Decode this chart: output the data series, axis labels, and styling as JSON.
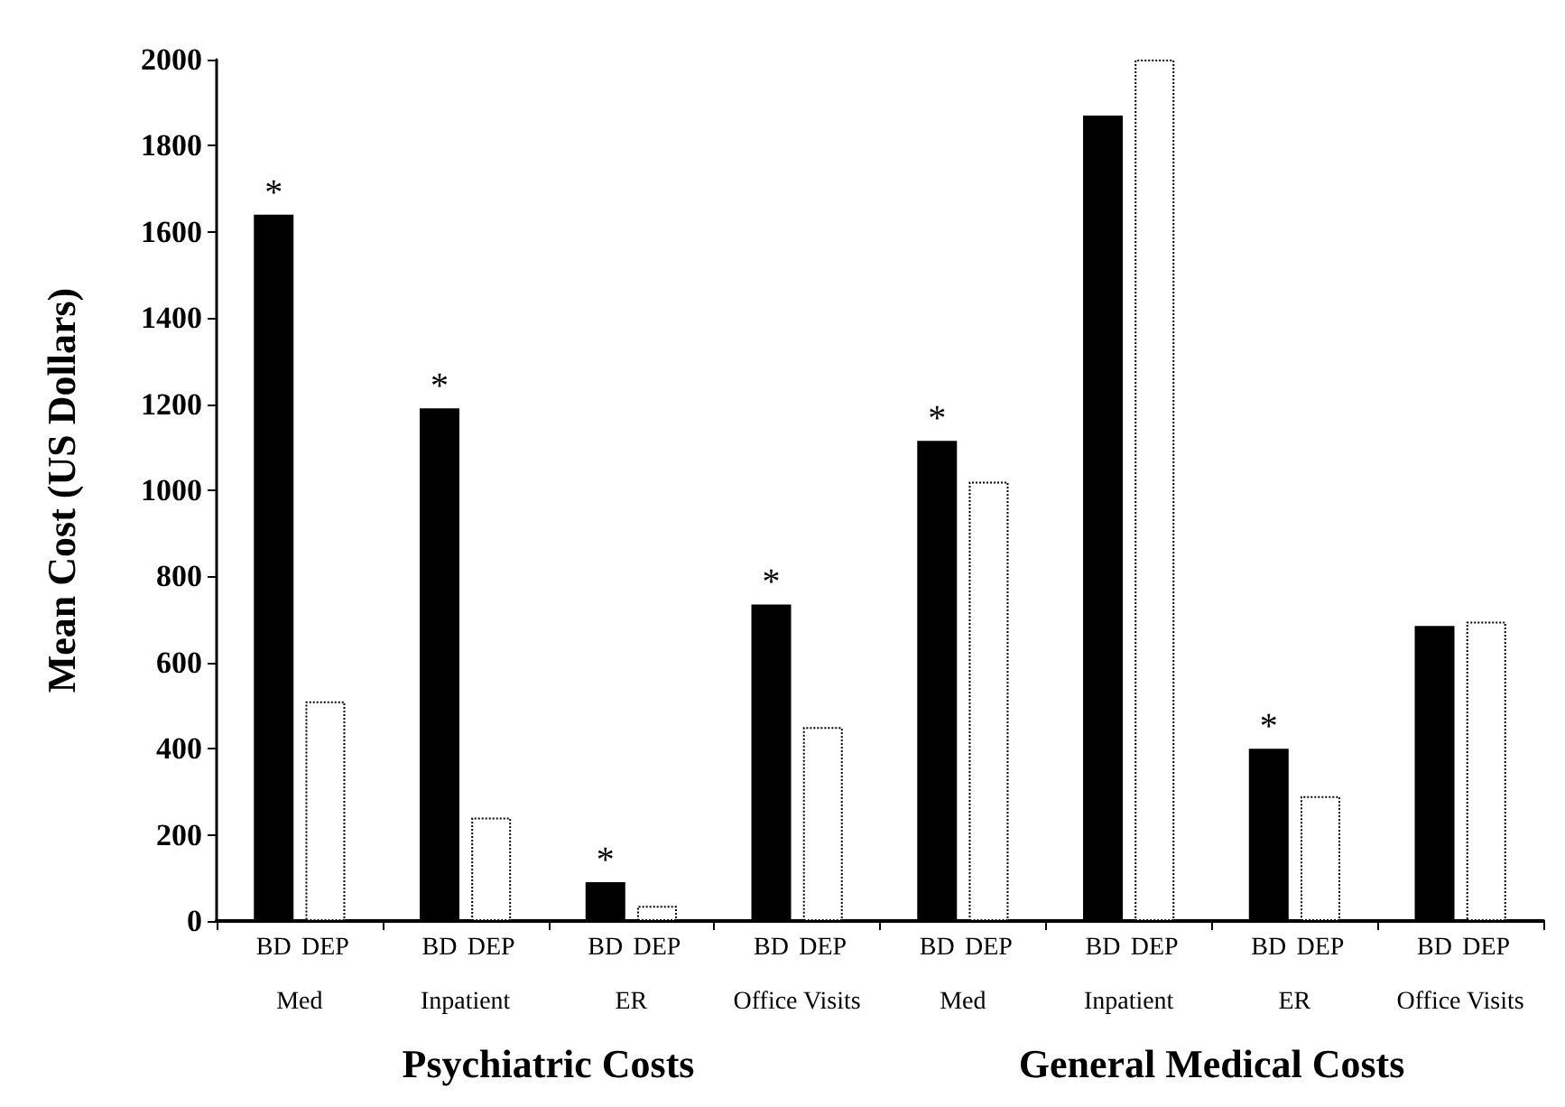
{
  "chart_data": {
    "type": "bar",
    "ylabel": "Mean Cost (US Dollars)",
    "categories": [
      "Med",
      "Inpatient",
      "ER",
      "Office Visits",
      "Med",
      "Inpatient",
      "ER",
      "Office Visits"
    ],
    "series": [
      {
        "name": "BD",
        "color": "#000000",
        "values": [
          1640,
          1190,
          90,
          735,
          1115,
          1870,
          400,
          685
        ],
        "value_labels": [
          "*",
          "*",
          "*",
          "*",
          "*",
          null,
          "*",
          null
        ]
      },
      {
        "name": "DEP",
        "color": "#ffffff",
        "values": [
          510,
          240,
          35,
          450,
          1020,
          2000,
          290,
          695
        ]
      }
    ],
    "ylim": [
      0,
      2000
    ],
    "yticks": [
      0,
      200,
      400,
      600,
      800,
      1000,
      1200,
      1400,
      1600,
      1800,
      2000
    ],
    "grid": false,
    "legend": false,
    "annotations": [
      "Psychiatric Costs",
      "General Medical Costs"
    ]
  }
}
